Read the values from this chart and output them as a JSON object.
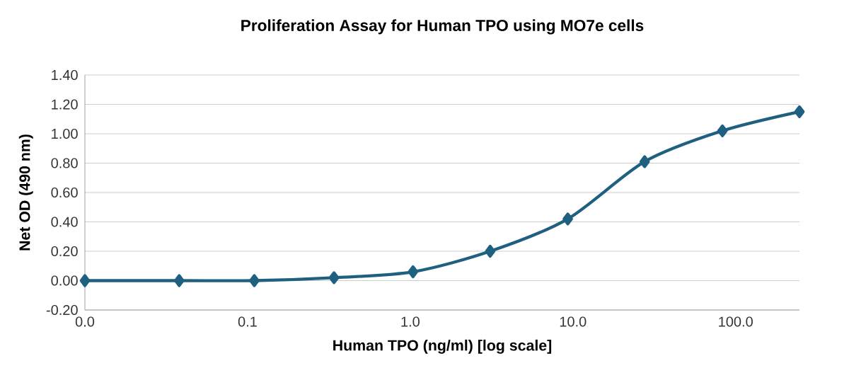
{
  "chart_data": {
    "type": "line",
    "title": "Proliferation Assay for Human TPO using MO7e cells",
    "xlabel": "Human TPO (ng/ml) [log scale]",
    "ylabel": "Net OD (490 nm)",
    "log": "x",
    "x": [
      0.01,
      0.038,
      0.11,
      0.34,
      1.04,
      3.1,
      9.3,
      27.6,
      83,
      247
    ],
    "series": [
      {
        "color": "#1f6080",
        "values": [
          0.0,
          0.0,
          0.0,
          0.02,
          0.06,
          0.2,
          0.42,
          0.81,
          1.02,
          1.15
        ]
      }
    ],
    "marker": "diamond",
    "line_style": "solid",
    "grid": "y",
    "xlim": [
      0.01,
      247
    ],
    "ylim": [
      -0.2,
      1.4
    ],
    "xticks": [
      {
        "value": 0.01,
        "label": "0.0"
      },
      {
        "value": 0.1,
        "label": "0.1"
      },
      {
        "value": 1,
        "label": "1.0"
      },
      {
        "value": 10,
        "label": "10.0"
      },
      {
        "value": 100,
        "label": "100.0"
      }
    ],
    "yticks": [
      {
        "value": -0.2,
        "label": "-0.20"
      },
      {
        "value": 0,
        "label": "0.00"
      },
      {
        "value": 0.2,
        "label": "0.20"
      },
      {
        "value": 0.4,
        "label": "0.40"
      },
      {
        "value": 0.6,
        "label": "0.60"
      },
      {
        "value": 0.8,
        "label": "0.80"
      },
      {
        "value": 1.0,
        "label": "1.00"
      },
      {
        "value": 1.2,
        "label": "1.20"
      },
      {
        "value": 1.4,
        "label": "1.40"
      }
    ]
  }
}
